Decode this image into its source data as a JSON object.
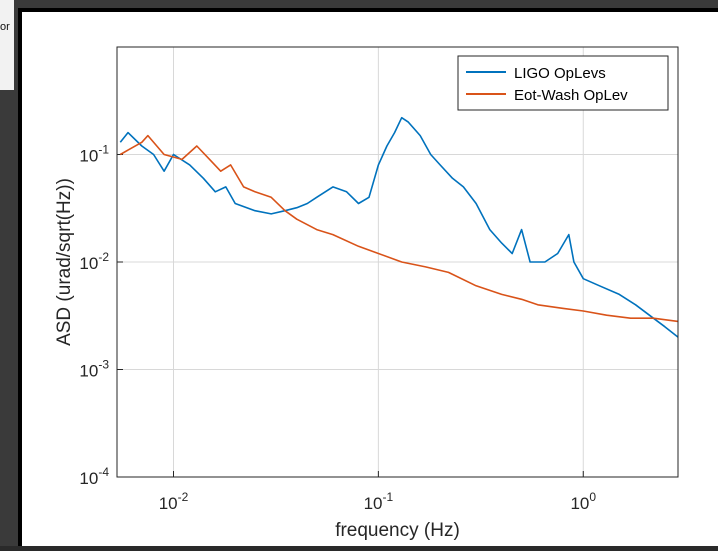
{
  "background_text": "or",
  "chart_data": {
    "type": "line",
    "xlabel": "frequency (Hz)",
    "ylabel": "ASD (urad/sqrt(Hz))",
    "xscale": "log",
    "yscale": "log",
    "xlim": [
      0.0053,
      2.9
    ],
    "ylim": [
      0.0001,
      1
    ],
    "xticks": [
      {
        "value": 0.01,
        "label": "10^-2"
      },
      {
        "value": 0.1,
        "label": "10^-1"
      },
      {
        "value": 1,
        "label": "10^0"
      }
    ],
    "yticks": [
      {
        "value": 0.0001,
        "label": "10^-4"
      },
      {
        "value": 0.001,
        "label": "10^-3"
      },
      {
        "value": 0.01,
        "label": "10^-2"
      },
      {
        "value": 0.1,
        "label": "10^-1"
      }
    ],
    "grid": true,
    "legend": "top-right",
    "series": [
      {
        "name": "LIGO OpLevs",
        "color": "#0072bd",
        "x": [
          0.0055,
          0.006,
          0.007,
          0.008,
          0.009,
          0.01,
          0.012,
          0.014,
          0.016,
          0.018,
          0.02,
          0.025,
          0.03,
          0.035,
          0.04,
          0.045,
          0.05,
          0.06,
          0.07,
          0.08,
          0.09,
          0.1,
          0.11,
          0.12,
          0.13,
          0.14,
          0.16,
          0.18,
          0.2,
          0.23,
          0.26,
          0.3,
          0.35,
          0.4,
          0.45,
          0.5,
          0.55,
          0.65,
          0.75,
          0.85,
          0.9,
          1.0,
          1.2,
          1.5,
          1.8,
          2.2,
          2.5,
          2.9
        ],
        "values": [
          0.13,
          0.16,
          0.12,
          0.1,
          0.07,
          0.1,
          0.08,
          0.06,
          0.045,
          0.05,
          0.035,
          0.03,
          0.028,
          0.03,
          0.032,
          0.035,
          0.04,
          0.05,
          0.045,
          0.035,
          0.04,
          0.08,
          0.12,
          0.16,
          0.22,
          0.2,
          0.15,
          0.1,
          0.08,
          0.06,
          0.05,
          0.035,
          0.02,
          0.015,
          0.012,
          0.02,
          0.01,
          0.01,
          0.012,
          0.018,
          0.01,
          0.007,
          0.006,
          0.005,
          0.004,
          0.003,
          0.0025,
          0.002
        ]
      },
      {
        "name": "Eot-Wash OpLev",
        "color": "#d95319",
        "x": [
          0.0055,
          0.006,
          0.007,
          0.0075,
          0.009,
          0.011,
          0.013,
          0.015,
          0.017,
          0.019,
          0.022,
          0.025,
          0.03,
          0.035,
          0.04,
          0.05,
          0.06,
          0.08,
          0.1,
          0.13,
          0.17,
          0.22,
          0.3,
          0.4,
          0.5,
          0.6,
          0.8,
          1,
          1.3,
          1.7,
          2.2,
          2.9
        ],
        "values": [
          0.1,
          0.11,
          0.13,
          0.15,
          0.1,
          0.09,
          0.12,
          0.09,
          0.07,
          0.08,
          0.05,
          0.045,
          0.04,
          0.03,
          0.025,
          0.02,
          0.018,
          0.014,
          0.012,
          0.01,
          0.009,
          0.008,
          0.006,
          0.005,
          0.0045,
          0.004,
          0.0037,
          0.0035,
          0.0032,
          0.003,
          0.003,
          0.0028
        ]
      }
    ]
  }
}
